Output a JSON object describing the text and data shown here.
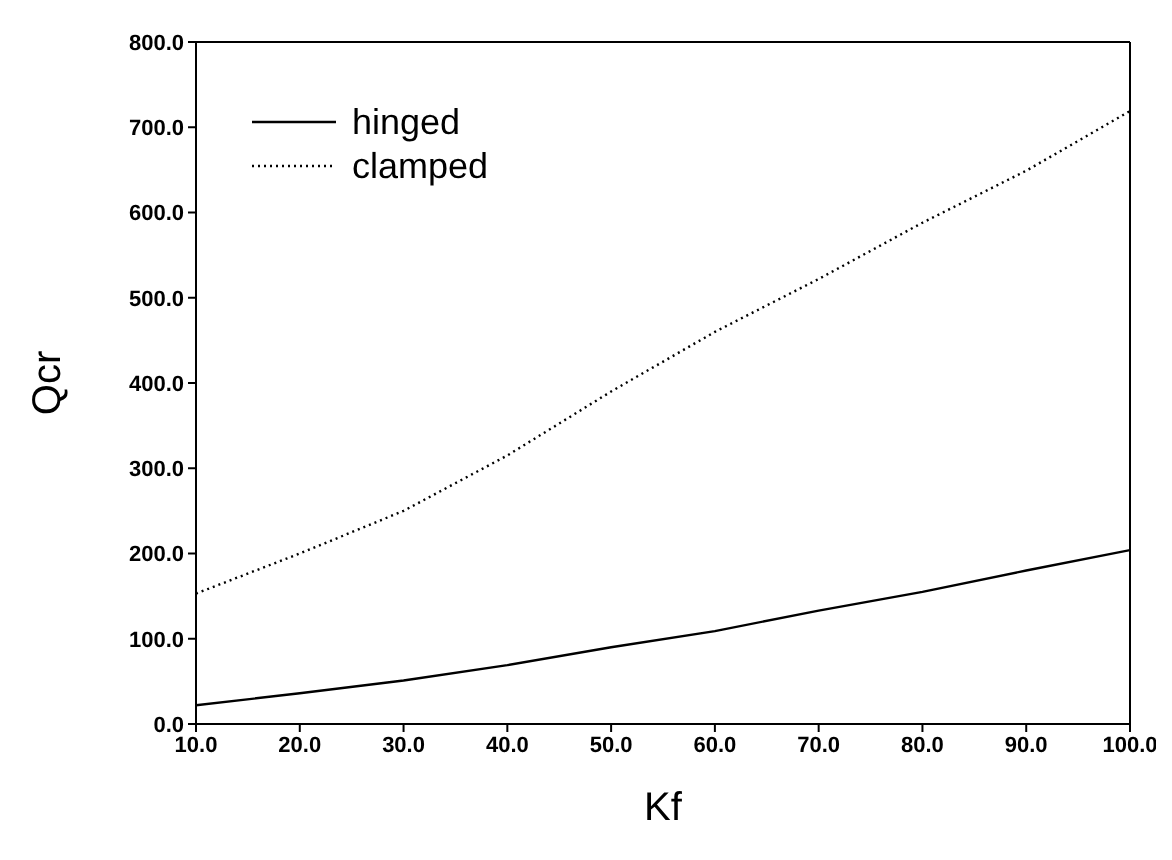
{
  "chart_data": {
    "type": "line",
    "xlabel": "Kf",
    "ylabel": "Qcr",
    "x": [
      10,
      20,
      30,
      40,
      50,
      60,
      70,
      80,
      90,
      100
    ],
    "series": [
      {
        "name": "hinged",
        "color": "#000000",
        "line_style": "solid",
        "values": [
          22,
          36,
          51,
          69,
          90,
          109,
          133,
          155,
          180,
          204
        ]
      },
      {
        "name": "clamped",
        "color": "#000000",
        "line_style": "dotted",
        "values": [
          153,
          200,
          250,
          315,
          390,
          460,
          522,
          588,
          649,
          719
        ]
      }
    ],
    "xlim": [
      10,
      100
    ],
    "ylim": [
      0,
      800
    ],
    "xticks": [
      {
        "value": 10,
        "label": "10.0"
      },
      {
        "value": 20,
        "label": "20.0"
      },
      {
        "value": 30,
        "label": "30.0"
      },
      {
        "value": 40,
        "label": "40.0"
      },
      {
        "value": 50,
        "label": "50.0"
      },
      {
        "value": 60,
        "label": "60.0"
      },
      {
        "value": 70,
        "label": "70.0"
      },
      {
        "value": 80,
        "label": "80.0"
      },
      {
        "value": 90,
        "label": "90.0"
      },
      {
        "value": 100,
        "label": "100.0"
      }
    ],
    "yticks": [
      {
        "value": 0,
        "label": "0.0"
      },
      {
        "value": 100,
        "label": "100.0"
      },
      {
        "value": 200,
        "label": "200.0"
      },
      {
        "value": 300,
        "label": "300.0"
      },
      {
        "value": 400,
        "label": "400.0"
      },
      {
        "value": 500,
        "label": "500.0"
      },
      {
        "value": 600,
        "label": "600.0"
      },
      {
        "value": 700,
        "label": "700.0"
      },
      {
        "value": 800,
        "label": "800.0"
      }
    ],
    "grid": false,
    "legend": "top left",
    "marker": "none"
  }
}
